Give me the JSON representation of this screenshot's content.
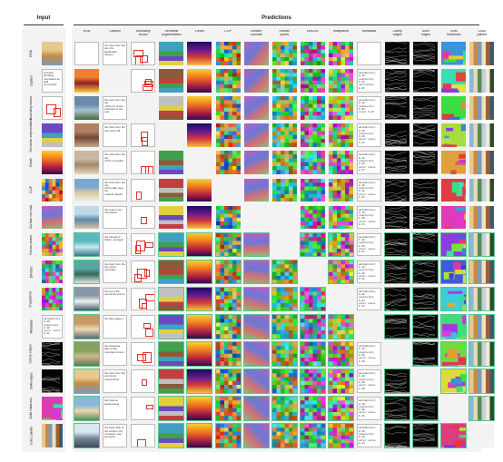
{
  "headers": {
    "input": "Input",
    "predictions": "Predictions"
  },
  "columns": [
    {
      "key": "rgb",
      "label": "RGB"
    },
    {
      "key": "caption",
      "label": "Caption"
    },
    {
      "key": "bbox",
      "label": "Bounding\nboxes"
    },
    {
      "key": "semseg",
      "label": "Semantic\nsegmentation"
    },
    {
      "key": "depth",
      "label": "Depth"
    },
    {
      "key": "clip",
      "label": "CLIP"
    },
    {
      "key": "normals",
      "label": "Surface\nnormals"
    },
    {
      "key": "poses",
      "label": "Human\nposes"
    },
    {
      "key": "dinov2",
      "label": "DINOv2"
    },
    {
      "key": "imagebind",
      "label": "ImageBind"
    },
    {
      "key": "metadata",
      "label": "Metadata"
    },
    {
      "key": "canny",
      "label": "Canny\nedges"
    },
    {
      "key": "samedges",
      "label": "SAM\nedges"
    },
    {
      "key": "saminst",
      "label": "SAM\ninstances"
    },
    {
      "key": "palette",
      "label": "Color\npalette"
    }
  ],
  "rows": [
    {
      "label": "RGB",
      "caption": "the view from the top of a\nlandscape canyon",
      "metadata": ""
    },
    {
      "label": "Caption",
      "caption": "",
      "input_text": "a beach showing\nmountains as well\nas a family",
      "metadata": "walkability 0.19\ncomplexity 0.29\nsaturation 0.41"
    },
    {
      "label": "Bounding boxes",
      "caption": "the view from the top\nof the ice at the\nentrance of the sea",
      "metadata": "walkability 0.19\ncomplexity 0.29\ncolor 0.26"
    },
    {
      "label": "Semantic segmentation",
      "caption": "the view from the\ntop of the hill",
      "metadata": "walkability 0.19\ncomplexity 0.29\nouter scale 0.47"
    },
    {
      "label": "Depth",
      "caption": "the view from the top\nof the mountain",
      "metadata": "walkability 0.19\ncomplexity 0.29\nouter scale 0.47"
    },
    {
      "label": "CLIP",
      "caption": "the view from the top\nof the lake near the\nvolcanic beach",
      "metadata": "walkability 0.19\ncomplexity 0.31\nouter scale 0.47"
    },
    {
      "label": "Surface normals",
      "caption": "the road to the\nmountains",
      "metadata": "walkability 0.19\ncomplexity 0.29\nouter scale 0.53"
    },
    {
      "label": "Human poses",
      "caption": "the streets of\nlisbon, portugal",
      "metadata": "walkability 0.19\ncomplexity 0.29\nouter scale 0.41"
    },
    {
      "label": "DINOv2",
      "caption": "the view from the\ntop of the\nmountain",
      "metadata": "walkability 0.19\ncomplexity 0.29\nouter scale 0.41"
    },
    {
      "label": "ImageBind",
      "caption": "the art of the\nsea of lies part 2",
      "metadata": "walkability 0.28\ncomplexity 0.29\nouter scale 0.41"
    },
    {
      "label": "Metadata",
      "caption": "the blue lagoon",
      "input_text": "walkability 0.25\ncomplexity 0.30\nouter scale 0.41",
      "metadata": ""
    },
    {
      "label": "Canny edges",
      "caption": "the turquoise\nlake of the\nmountain tunnel",
      "metadata": "walkability 0.19\ncomplexity 0.29\nouter scale 0.39"
    },
    {
      "label": "SAM edges",
      "caption": "the view from the\nsummit of\nmount lurna",
      "metadata": "walkability 0.19\ncomplexity 0.29\nouter scale 0.39"
    },
    {
      "label": "SAM instances",
      "caption": "the hotel at\nsanta arena",
      "metadata": "walkability 0.19\ncomplexity 0.29\nouter scale 0.41"
    },
    {
      "label": "Color palette",
      "caption": "the three hills of\nthe ancient city\nof athens, see\nleonardo",
      "metadata": "walkability 0.20\ncomplexity 0.32\nouter scale 0.44"
    }
  ],
  "colors": {
    "panel_bg": "#f3f3f3",
    "highlight": "#5cc489",
    "bbox": "#e03030"
  }
}
